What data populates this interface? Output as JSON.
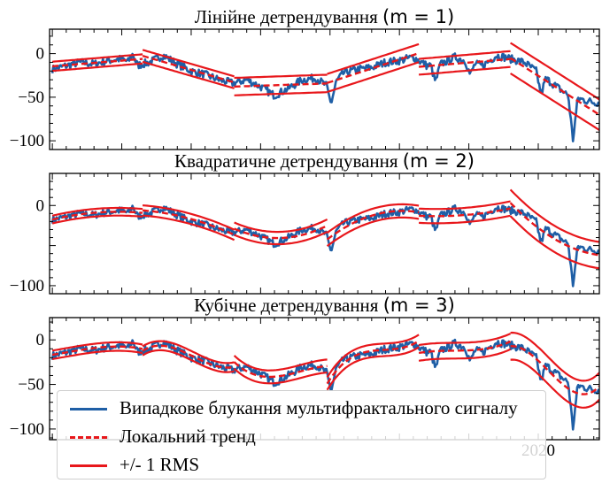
{
  "chart_data": [
    {
      "type": "line",
      "title": "Лінійне детрендування",
      "title_math": "(m = 1)",
      "yticks": [
        0,
        -50,
        -100
      ],
      "ylim": [
        -110,
        28
      ],
      "xlim": [
        1984.8,
        2024.4
      ],
      "series": [
        {
          "name": "Випадкове блукання мультифрактального сигналу",
          "role": "signal",
          "color": "#1f5fa6",
          "x": [
            1985,
            1986,
            1987,
            1988,
            1989,
            1990,
            1991,
            1992,
            1993,
            1994,
            1995,
            1996,
            1997,
            1998,
            1999,
            2000,
            2001,
            2002,
            2003,
            2004,
            2005,
            2006,
            2007,
            2008,
            2009,
            2010,
            2011,
            2012,
            2013,
            2014,
            2015,
            2016,
            2017,
            2018,
            2019,
            2020,
            2021,
            2022,
            2023,
            2024
          ],
          "values": [
            -18,
            -14,
            -10,
            -12,
            -8,
            -6,
            -14,
            -10,
            -2,
            -12,
            -20,
            -24,
            -30,
            -34,
            -30,
            -38,
            -48,
            -40,
            -30,
            -28,
            -40,
            -22,
            -18,
            -16,
            -10,
            -8,
            -4,
            -14,
            -12,
            -4,
            -10,
            -14,
            -2,
            -6,
            -10,
            -22,
            -34,
            -46,
            -52,
            -56
          ]
        },
        {
          "name": "Локальний тренд",
          "role": "trend",
          "color": "#e8171b",
          "segments": [
            {
              "x": [
                1985,
                1992
              ],
              "values": [
                -12,
                -6
              ]
            },
            {
              "x": [
                1992,
                1998.7
              ],
              "values": [
                -6,
                -33
              ]
            },
            {
              "x": [
                1998.7,
                2005.3
              ],
              "values": [
                -36,
                -28
              ]
            },
            {
              "x": [
                2005.3,
                2012
              ],
              "values": [
                -34,
                -12
              ]
            },
            {
              "x": [
                2012,
                2018.6
              ],
              "values": [
                -12,
                -12
              ]
            },
            {
              "x": [
                2018.6,
                2025
              ],
              "values": [
                -18,
                -52
              ]
            },
            {
              "x": [
                2025,
                2031.6
              ],
              "values": [
                -59,
                10
              ]
            }
          ]
        }
      ]
    },
    {
      "type": "line",
      "title": "Квадратичне детрендування",
      "title_math": "(m = 2)",
      "yticks": [
        0,
        -100
      ],
      "ylim": [
        -110,
        40
      ],
      "xlim": [
        1984.8,
        2024.4
      ],
      "series": [
        {
          "name": "Випадкове блукання мультифрактального сигналу",
          "role": "signal",
          "color": "#1f5fa6"
        },
        {
          "name": "Локальний тренд",
          "role": "trend",
          "color": "#e8171b"
        }
      ]
    },
    {
      "type": "line",
      "title": "Кубічне детрендування",
      "title_math": "(m = 3)",
      "yticks": [
        0,
        -50,
        -100
      ],
      "ylim": [
        -112,
        25
      ],
      "xlim": [
        1984.8,
        2024.4
      ],
      "xticks_visible": [
        "2020"
      ],
      "series": [
        {
          "name": "Випадкове блукання мультифрактального сигналу",
          "role": "signal",
          "color": "#1f5fa6"
        },
        {
          "name": "Локальний тренд",
          "role": "trend",
          "color": "#e8171b"
        }
      ]
    }
  ],
  "legend": {
    "items": [
      {
        "label": "Випадкове блукання мультифрактального сигналу",
        "color": "#1f5fa6",
        "style": "solid"
      },
      {
        "label": "Локальний тренд",
        "color": "#e8171b",
        "style": "dashed"
      },
      {
        "label": "+/- 1 RMS",
        "color": "#e8171b",
        "style": "solid"
      }
    ]
  },
  "colors": {
    "signal": "#1f5fa6",
    "trend": "#e8171b",
    "axes": "#000000"
  }
}
